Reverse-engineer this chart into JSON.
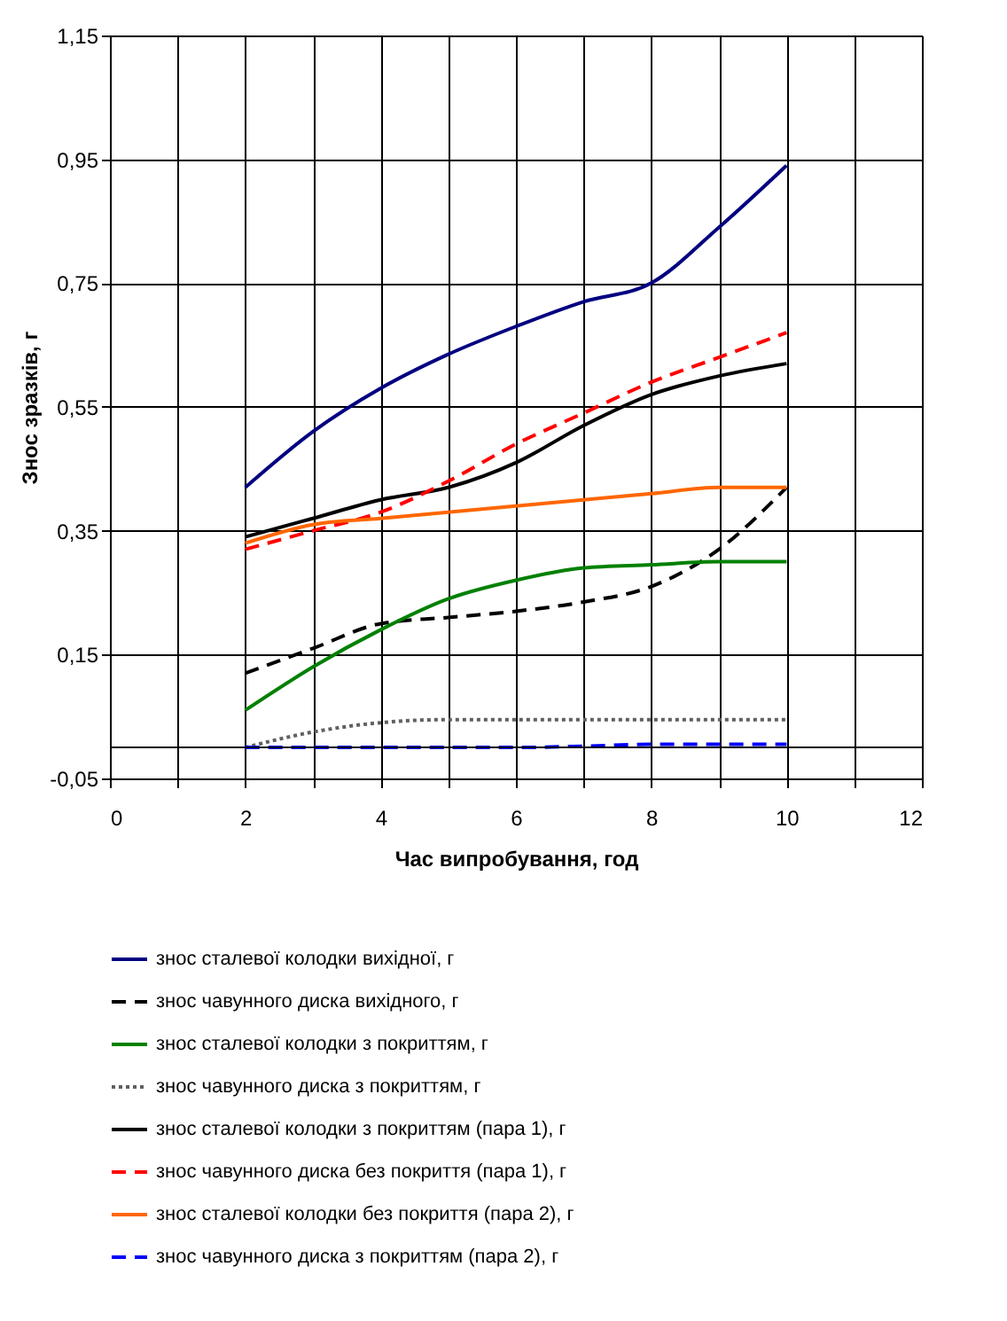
{
  "chart_data": {
    "type": "line",
    "xlabel": "Час випробування, год",
    "ylabel": "Знос зразків, г",
    "x": [
      2,
      3,
      4,
      5,
      6,
      7,
      8,
      9,
      10
    ],
    "xlim": [
      0,
      12
    ],
    "xticks": [
      0,
      {
        "value": 1,
        "label": null
      },
      2,
      {
        "value": 3,
        "label": null
      },
      4,
      {
        "value": 5,
        "label": null
      },
      6,
      {
        "value": 7,
        "label": null
      },
      8,
      {
        "value": 9,
        "label": null
      },
      10,
      {
        "value": 11,
        "label": null
      },
      12
    ],
    "ylim": [
      -0.05,
      1.15
    ],
    "yticks": [
      {
        "value": -0.05,
        "label": "-0,05"
      },
      {
        "value": 0.15,
        "label": "0,15"
      },
      {
        "value": 0.35,
        "label": "0,35"
      },
      {
        "value": 0.55,
        "label": "0,55"
      },
      {
        "value": 0.75,
        "label": "0,75"
      },
      {
        "value": 0.95,
        "label": "0,95"
      },
      {
        "value": 1.15,
        "label": "1,15"
      }
    ],
    "grid": true,
    "legend": "bottom",
    "marker": "none",
    "ref_lines": [
      {
        "axis": "y",
        "value": 0,
        "color": "#000000"
      }
    ],
    "series": [
      {
        "name": "знос сталевої колодки вихідної, г",
        "color": "#000080",
        "line_style": "solid",
        "values": [
          0.42,
          0.51,
          0.58,
          0.635,
          0.68,
          0.72,
          0.75,
          0.84,
          0.94
        ]
      },
      {
        "name": "знос чавунного диска вихідного, г",
        "color": "#000000",
        "line_style": "dashed",
        "values": [
          0.12,
          0.16,
          0.2,
          0.21,
          0.22,
          0.235,
          0.26,
          0.32,
          0.42
        ]
      },
      {
        "name": "знос сталевої колодки з покриттям, г",
        "color": "#008000",
        "line_style": "solid",
        "values": [
          0.06,
          0.13,
          0.19,
          0.24,
          0.27,
          0.29,
          0.295,
          0.3,
          0.3
        ]
      },
      {
        "name": "знос чавунного диска з покриттям, г",
        "color": "#606060",
        "line_style": "dotted",
        "values": [
          0.0,
          0.025,
          0.04,
          0.045,
          0.045,
          0.045,
          0.045,
          0.045,
          0.045
        ]
      },
      {
        "name": "знос сталевої колодки з покриттям (пара 1), г",
        "color": "#000000",
        "line_style": "solid",
        "values": [
          0.34,
          0.37,
          0.4,
          0.42,
          0.46,
          0.52,
          0.57,
          0.6,
          0.62
        ]
      },
      {
        "name": "знос чавунного диска без покриття (пара 1), г",
        "color": "#ff0000",
        "line_style": "dashed",
        "values": [
          0.32,
          0.35,
          0.38,
          0.43,
          0.49,
          0.54,
          0.59,
          0.63,
          0.67
        ]
      },
      {
        "name": "знос сталевої колодки без покриття (пара 2), г",
        "color": "#ff6600",
        "line_style": "solid",
        "values": [
          0.33,
          0.36,
          0.37,
          0.38,
          0.39,
          0.4,
          0.41,
          0.42,
          0.42
        ]
      },
      {
        "name": "знос чавунного диска з покриттям (пара 2), г",
        "color": "#0000ff",
        "line_style": "dashed",
        "values": [
          0.0,
          0.0,
          0.0,
          0.0,
          0.0,
          0.002,
          0.005,
          0.005,
          0.005
        ]
      }
    ]
  }
}
